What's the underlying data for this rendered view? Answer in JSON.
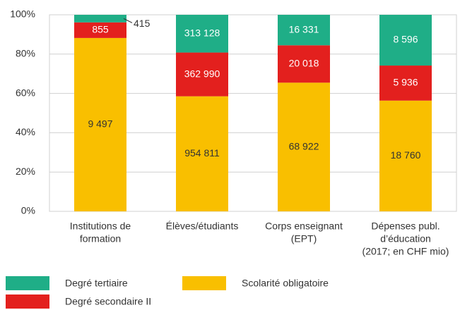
{
  "chart_data": {
    "type": "bar",
    "stacked": "percent",
    "categories": [
      [
        "Institutions de",
        "formation"
      ],
      [
        "Élèves/étudiants"
      ],
      [
        "Corps enseignant",
        "(EPT)"
      ],
      [
        "Dépenses publ.",
        "d’éducation",
        "(2017; en CHF mio)"
      ]
    ],
    "series": [
      {
        "name": "Scolarité obligatoire",
        "color": "#f9bf00",
        "values": [
          9497,
          954811,
          68922,
          18760
        ],
        "value_labels": [
          "9 497",
          "954 811",
          "68 922",
          "18 760"
        ]
      },
      {
        "name": "Degré secondaire II",
        "color": "#e3201e",
        "values": [
          855,
          362990,
          20018,
          5936
        ],
        "value_labels": [
          "855",
          "362 990",
          "20 018",
          "5 936"
        ]
      },
      {
        "name": "Degré tertiaire",
        "color": "#1fae87",
        "values": [
          415,
          313128,
          16331,
          8596
        ],
        "value_labels": [
          "415",
          "313 128",
          "16 331",
          "8 596"
        ]
      }
    ],
    "ylim": [
      0,
      100
    ],
    "yticks": [
      {
        "value": 0,
        "label": "0%"
      },
      {
        "value": 20,
        "label": "20%"
      },
      {
        "value": 40,
        "label": "40%"
      },
      {
        "value": 60,
        "label": "60%"
      },
      {
        "value": 80,
        "label": "80%"
      },
      {
        "value": 100,
        "label": "100%"
      }
    ],
    "grid": true
  }
}
